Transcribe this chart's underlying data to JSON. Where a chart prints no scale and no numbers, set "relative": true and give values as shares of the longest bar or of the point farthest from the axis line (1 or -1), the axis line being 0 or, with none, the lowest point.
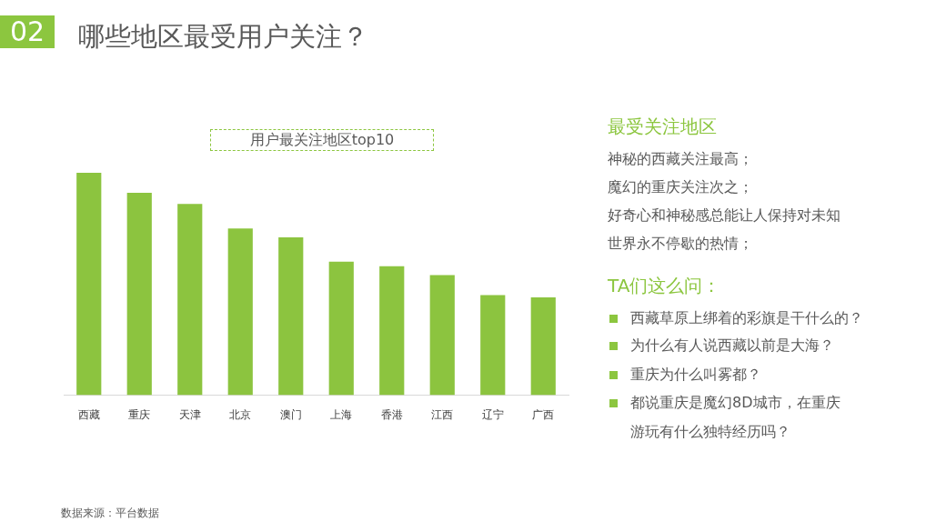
{
  "chart_data": {
    "type": "bar",
    "title": "哪些地区最受用户关注？",
    "subtitle": "用户最关注地区top10",
    "categories": [
      "西藏",
      "重庆",
      "天津",
      "北京",
      "澳门",
      "上海",
      "香港",
      "江西",
      "辽宁",
      "广西"
    ],
    "values": [
      1,
      0.91,
      0.86,
      0.75,
      0.71,
      0.6,
      0.58,
      0.54,
      0.45,
      0.44
    ],
    "color": "#8cc43f",
    "relative": true,
    "annotations": [
      "02",
      "最受关注地区",
      "神秘的西藏关注最高；",
      "魔幻的重庆关注次之；",
      "好奇心和神秘感总能让人保持对未知世界永不停歇的热情；",
      "TA们这么问：",
      "西藏草原上绑着的彩旗是干什么的？",
      "为什么有人说西藏以前是大海？",
      "重庆为什么叫雾都？",
      "都说重庆是魔幻8D城市，在重庆游玩有什么独特经历吗？",
      "数据来源：平台数据"
    ]
  }
}
